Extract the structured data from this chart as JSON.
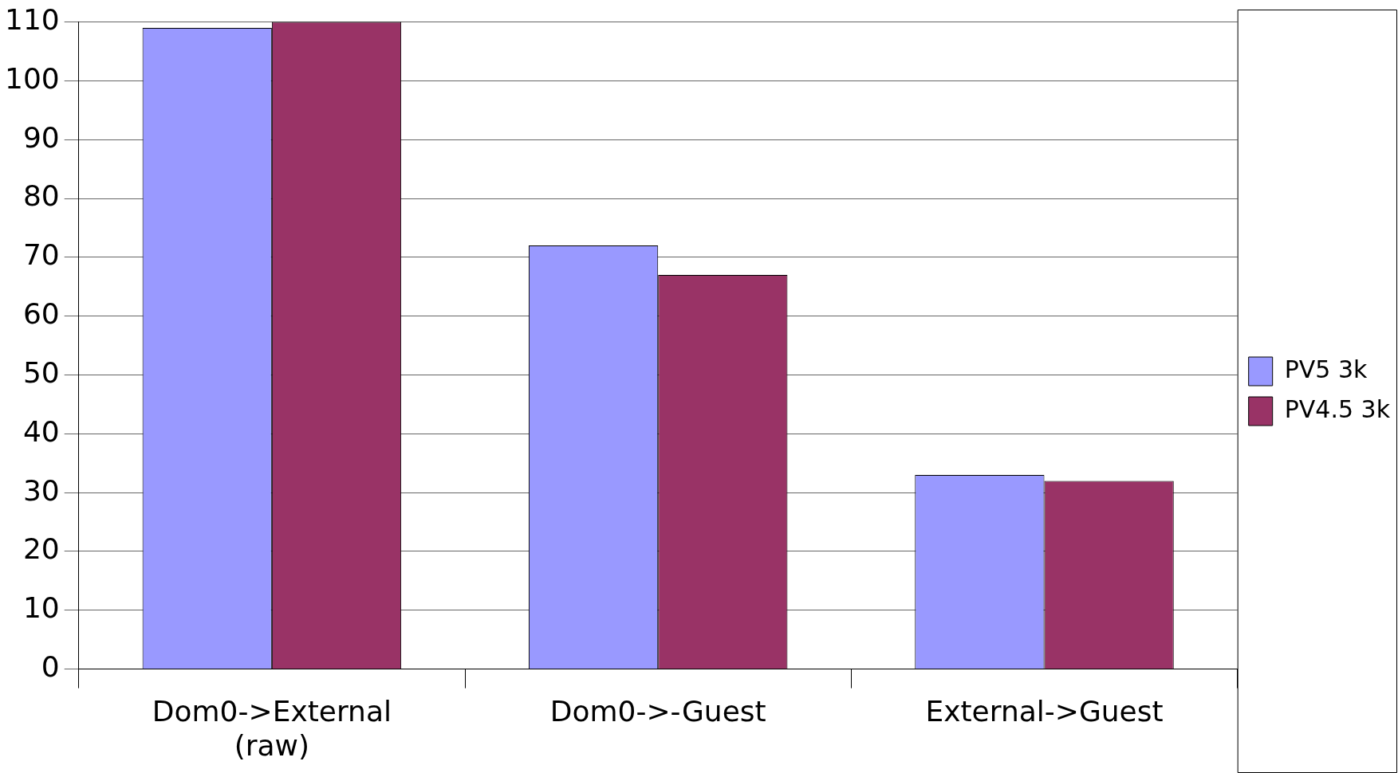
{
  "chart_data": {
    "type": "bar",
    "categories": [
      "Dom0->External (raw)",
      "Dom0->-Guest",
      "External->Guest"
    ],
    "series": [
      {
        "name": "PV5 3k",
        "color": "#9999ff",
        "values": [
          109,
          72,
          33
        ]
      },
      {
        "name": "PV4.5 3k",
        "color": "#993366",
        "values": [
          110,
          67,
          32
        ]
      }
    ],
    "ylim": [
      0,
      110
    ],
    "yticks": [
      0,
      10,
      20,
      30,
      40,
      50,
      60,
      70,
      80,
      90,
      100,
      110
    ],
    "grid": "y",
    "legend": "right"
  }
}
